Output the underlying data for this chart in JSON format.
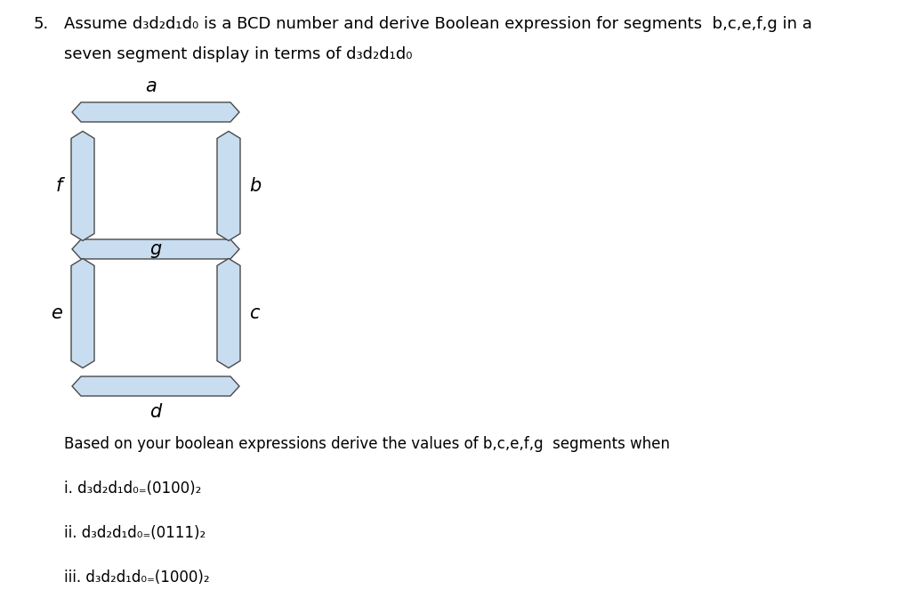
{
  "title_number": "5.",
  "title_line1": "Assume d₃d₂d₁d₀ is a BCD number and derive Boolean expression for segments  b,c,e,f,g in a",
  "title_line2": "seven segment display in terms of d₃d₂d₁d₀",
  "body_line1": "Based on your boolean expressions derive the values of b,c,e,f,g  segments when",
  "sub_i": "i. d₃d₂d₁d₀ ₌ (0100)₂",
  "sub_ii": "ii. d₃d₂d₁d₀ ₌ (0111)₂",
  "sub_iii": "iii. d₃d₂d₁d₀ ₌ (1000)₂",
  "segment_fill": "#c8ddf0",
  "segment_edge": "#4a4a4a",
  "background": "#ffffff",
  "seg_lw": 1.0
}
